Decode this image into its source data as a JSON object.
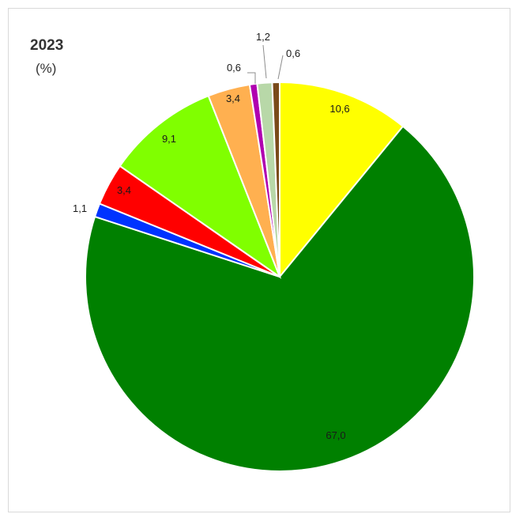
{
  "chart_data": {
    "type": "pie",
    "title": "2023",
    "subtitle": "(%)",
    "start_angle_deg": 0,
    "direction": "clockwise",
    "slices": [
      {
        "value": 10.6,
        "label": "10,6",
        "color": "#ffff00"
      },
      {
        "value": 67.0,
        "label": "67,0",
        "color": "#008000"
      },
      {
        "value": 1.1,
        "label": "1,1",
        "color": "#0033ff"
      },
      {
        "value": 3.4,
        "label": "3,4",
        "color": "#ff0000"
      },
      {
        "value": 9.1,
        "label": "9,1",
        "color": "#80ff00"
      },
      {
        "value": 3.4,
        "label": "3,4",
        "color": "#ffb050"
      },
      {
        "value": 0.6,
        "label": "0,6",
        "color": "#b000b0"
      },
      {
        "value": 1.2,
        "label": "1,2",
        "color": "#b8d8a8"
      },
      {
        "value": 0.6,
        "label": "0,6",
        "color": "#7a4a1a"
      }
    ]
  }
}
